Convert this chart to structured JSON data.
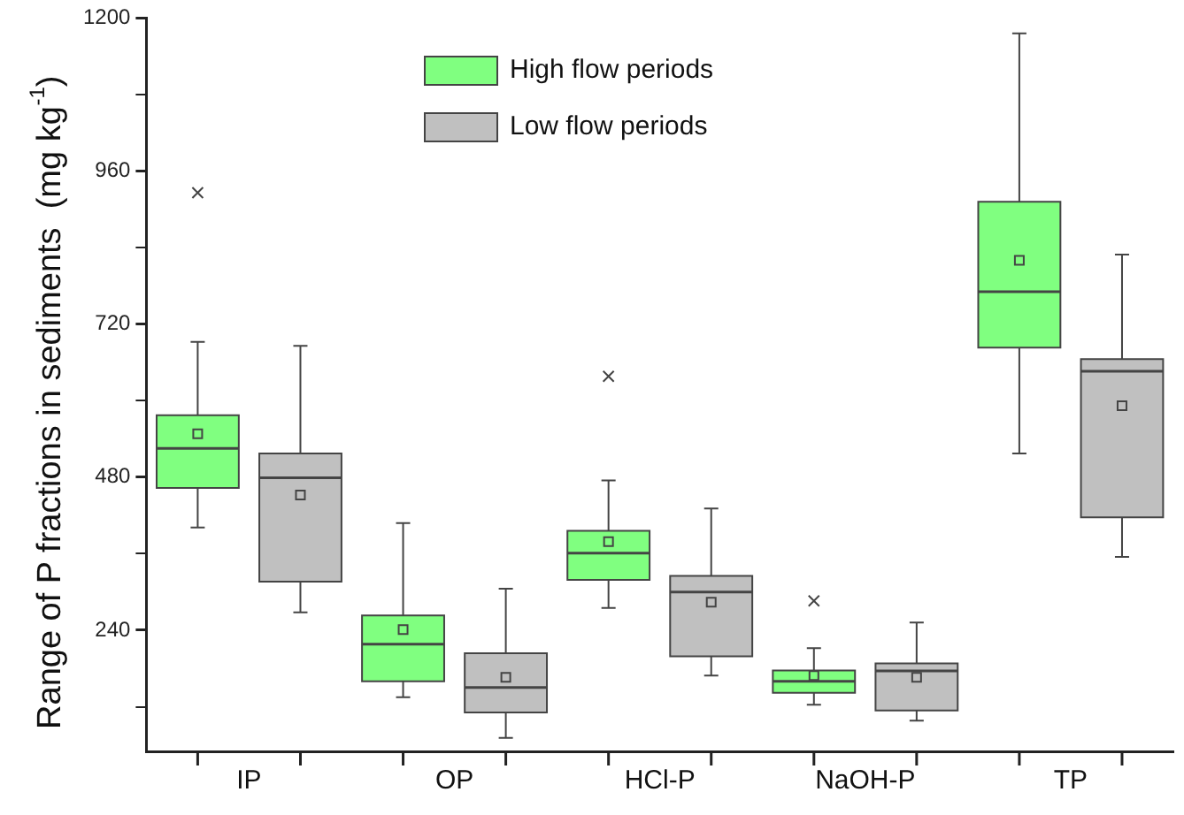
{
  "chart_data": {
    "type": "box",
    "ylabel": "Range of P fractions in sediments  (mg kg$^{-1}$)",
    "categories": [
      "IP",
      "OP",
      "HCl-P",
      "NaOH-P",
      "TP"
    ],
    "legend": "top",
    "ylim": [
      50,
      1200
    ],
    "yticks": [
      {
        "value": 120,
        "label": null
      },
      240,
      {
        "value": 360,
        "label": null
      },
      480,
      {
        "value": 600,
        "label": null
      },
      720,
      {
        "value": 840,
        "label": null
      },
      960,
      {
        "value": 1080,
        "label": null
      },
      1200
    ],
    "series": [
      {
        "name": "High flow periods",
        "color": "#80ff80",
        "boxes": [
          {
            "low": 401,
            "q1": 463,
            "median": 525,
            "q3": 577,
            "high": 692,
            "mean": 548,
            "outliers": [
              926
            ]
          },
          {
            "low": 135,
            "q1": 160,
            "median": 218,
            "q3": 263,
            "high": 408,
            "mean": 241
          },
          {
            "low": 275,
            "q1": 319,
            "median": 361,
            "q3": 396,
            "high": 475,
            "mean": 379,
            "outliers": [
              638
            ]
          },
          {
            "low": 123,
            "q1": 142,
            "median": 160,
            "q3": 177,
            "high": 212,
            "mean": 169,
            "outliers": [
              286
            ]
          },
          {
            "low": 517,
            "q1": 683,
            "median": 771,
            "q3": 912,
            "high": 1176,
            "mean": 820
          }
        ]
      },
      {
        "name": "Low flow periods",
        "color": "#c0c0c0",
        "boxes": [
          {
            "low": 268,
            "q1": 316,
            "median": 479,
            "q3": 517,
            "high": 686,
            "mean": 452
          },
          {
            "low": 71,
            "q1": 111,
            "median": 150,
            "q3": 204,
            "high": 305,
            "mean": 166
          },
          {
            "low": 169,
            "q1": 199,
            "median": 300,
            "q3": 325,
            "high": 431,
            "mean": 284
          },
          {
            "low": 98,
            "q1": 114,
            "median": 176,
            "q3": 188,
            "high": 252,
            "mean": 166
          },
          {
            "low": 355,
            "q1": 417,
            "median": 646,
            "q3": 665,
            "high": 829,
            "mean": 592
          }
        ]
      }
    ]
  }
}
